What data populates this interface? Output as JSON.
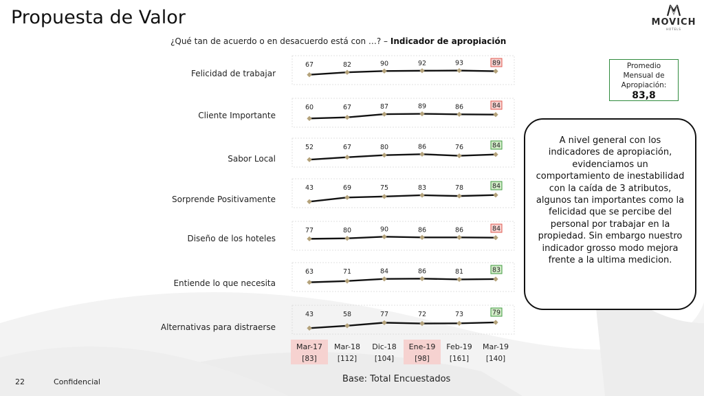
{
  "header": {
    "title": "Propuesta de Valor",
    "question_prefix": "¿Qué tan de acuerdo o en desacuerdo está con …? – ",
    "question_bold": "Indicador de apropiación"
  },
  "logo": {
    "name": "MOVICH",
    "sub": "HOTELS"
  },
  "promedio": {
    "lines": [
      "Promedio",
      "Mensual de",
      "Apropiación:"
    ],
    "value": "83,8"
  },
  "callout": {
    "text": "A nivel general con los indicadores de apropiación, evidenciamos un comportamiento de inestabilidad con la caída de 3 atributos, algunos tan importantes como la felicidad que se percibe del personal por trabajar en la propiedad. Sin embargo nuestro indicador grosso modo mejora frente a la ultima medicion."
  },
  "footer": {
    "page_number": "22",
    "confidential": "Confidencial",
    "base": "Base: Total Encuestados"
  },
  "colors": {
    "line": "#111111",
    "marker": "#b4a27a",
    "highlight_red_bg": "#f6d2d0",
    "highlight_red_border": "#e05a4f",
    "highlight_green_bg": "#d3ecc9",
    "highlight_green_border": "#3f9a3f",
    "column_highlight": "#f6d2d0"
  },
  "chart_data": {
    "type": "line",
    "x": [
      "Mar-17",
      "Mar-18",
      "Dic-18",
      "Ene-19",
      "Feb-19",
      "Mar-19"
    ],
    "x_bases": [
      "[83]",
      "[112]",
      "[104]",
      "[98]",
      "[161]",
      "[140]"
    ],
    "highlighted_x": [
      "Mar-17",
      "Ene-19"
    ],
    "series": [
      {
        "name": "Felicidad de trabajar",
        "values": [
          67,
          82,
          90,
          92,
          93,
          89
        ],
        "last_flag": "down"
      },
      {
        "name": "Cliente Importante",
        "values": [
          60,
          67,
          87,
          89,
          86,
          84
        ],
        "last_flag": "down"
      },
      {
        "name": "Sabor Local",
        "values": [
          52,
          67,
          80,
          86,
          76,
          84
        ],
        "last_flag": "up"
      },
      {
        "name": "Sorprende Positivamente",
        "values": [
          43,
          69,
          75,
          83,
          78,
          84
        ],
        "last_flag": "up"
      },
      {
        "name": "Diseño de los hoteles",
        "values": [
          77,
          80,
          90,
          86,
          86,
          84
        ],
        "last_flag": "down"
      },
      {
        "name": "Entiende lo que necesita",
        "values": [
          63,
          71,
          84,
          86,
          81,
          83
        ],
        "last_flag": "up"
      },
      {
        "name": "Alternativas para distraerse",
        "values": [
          43,
          58,
          77,
          72,
          73,
          79
        ],
        "last_flag": "up"
      }
    ],
    "ylim": [
      0,
      100
    ]
  }
}
